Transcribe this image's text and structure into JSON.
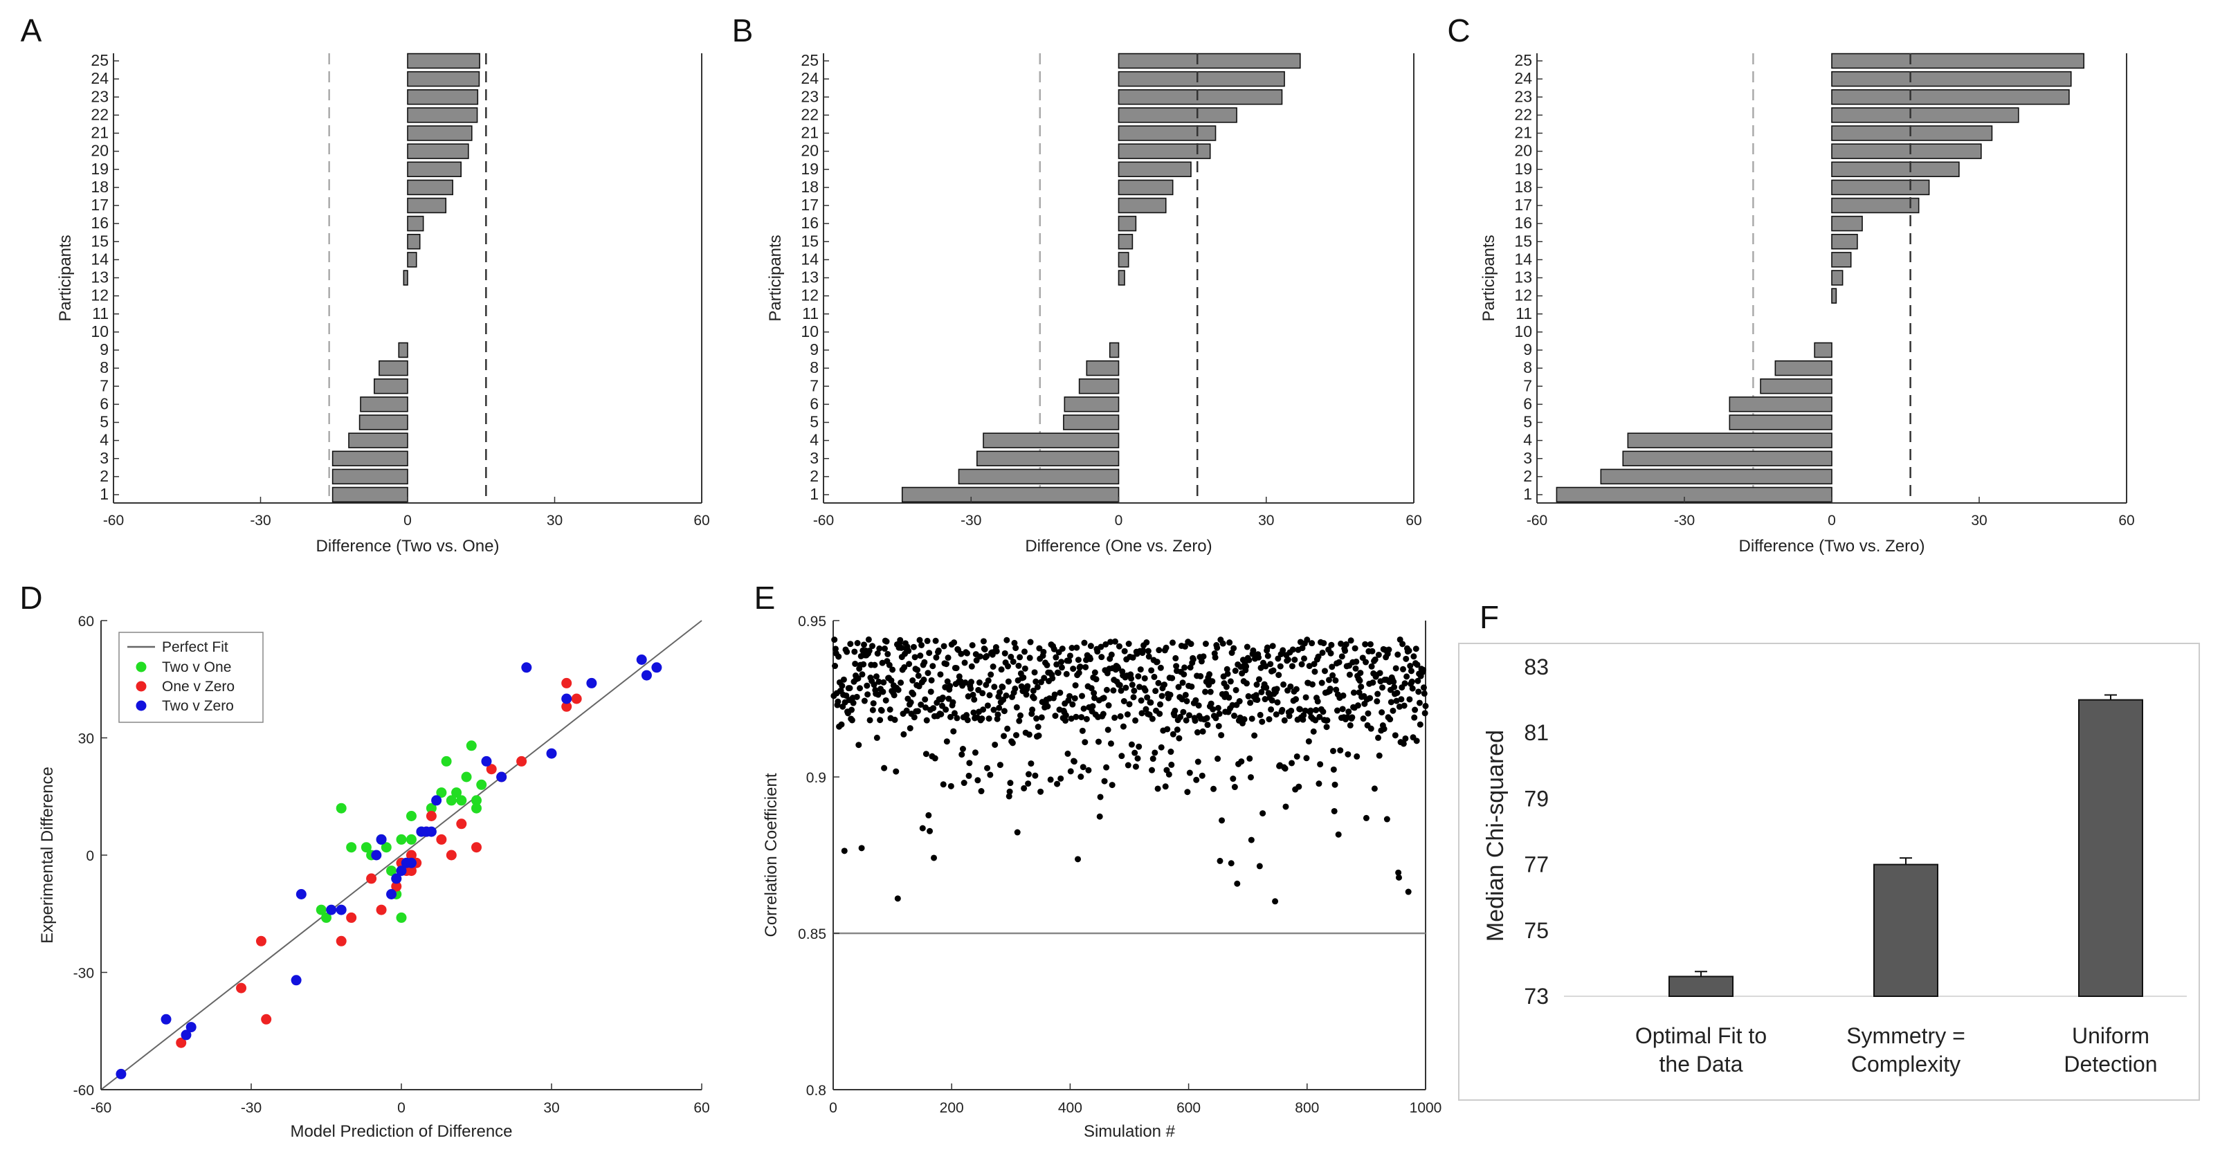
{
  "chart_data": [
    {
      "panel": "A",
      "type": "bar",
      "orientation": "horizontal",
      "xlabel": "Difference (Two vs. One)",
      "ylabel": "Participants",
      "xlim": [
        -60,
        60
      ],
      "xticks": [
        -60,
        -30,
        0,
        30,
        60
      ],
      "categories": [
        1,
        2,
        3,
        4,
        5,
        6,
        7,
        8,
        9,
        10,
        11,
        12,
        13,
        14,
        15,
        16,
        17,
        18,
        19,
        20,
        21,
        22,
        23,
        24,
        25
      ],
      "values": [
        -15.3,
        -15.3,
        -15.3,
        -12,
        -9.8,
        -9.6,
        -6.8,
        -5.8,
        -1.8,
        0,
        0,
        0,
        -0.8,
        1.8,
        2.5,
        3.2,
        7.8,
        9.2,
        10.9,
        12.4,
        13.1,
        14.2,
        14.3,
        14.6,
        14.7
      ],
      "ref_lines": [
        -16,
        16
      ]
    },
    {
      "panel": "B",
      "type": "bar",
      "orientation": "horizontal",
      "xlabel": "Difference (One vs. Zero)",
      "ylabel": "Participants",
      "xlim": [
        -60,
        60
      ],
      "xticks": [
        -60,
        -30,
        0,
        30,
        60
      ],
      "categories": [
        1,
        2,
        3,
        4,
        5,
        6,
        7,
        8,
        9,
        10,
        11,
        12,
        13,
        14,
        15,
        16,
        17,
        18,
        19,
        20,
        21,
        22,
        23,
        24,
        25
      ],
      "values": [
        -44,
        -32.5,
        -28.8,
        -27.5,
        -11.2,
        -11,
        -8,
        -6.5,
        -1.8,
        0,
        0,
        0,
        1.2,
        2,
        2.8,
        3.5,
        9.6,
        11,
        14.7,
        18.6,
        19.7,
        24,
        33.2,
        33.7,
        36.9
      ],
      "ref_lines": [
        -16,
        16
      ]
    },
    {
      "panel": "C",
      "type": "bar",
      "orientation": "horizontal",
      "xlabel": "Difference (Two vs. Zero)",
      "ylabel": "Participants",
      "xlim": [
        -60,
        60
      ],
      "xticks": [
        -60,
        -30,
        0,
        30,
        60
      ],
      "categories": [
        1,
        2,
        3,
        4,
        5,
        6,
        7,
        8,
        9,
        10,
        11,
        12,
        13,
        14,
        15,
        16,
        17,
        18,
        19,
        20,
        21,
        22,
        23,
        24,
        25
      ],
      "values": [
        -56,
        -47,
        -42.5,
        -41.5,
        -20.8,
        -20.8,
        -14.5,
        -11.5,
        -3.5,
        0,
        0,
        0.9,
        2.2,
        3.9,
        5.2,
        6.2,
        17.7,
        19.8,
        25.9,
        30.4,
        32.6,
        38,
        48.3,
        48.7,
        51.3
      ],
      "ref_lines": [
        -16,
        16
      ]
    },
    {
      "panel": "D",
      "type": "scatter",
      "xlabel": "Model Prediction of Difference",
      "ylabel": "Experimental Difference",
      "xlim": [
        -60,
        60
      ],
      "ylim": [
        -60,
        60
      ],
      "xticks": [
        -60,
        -30,
        0,
        30,
        60
      ],
      "yticks": [
        -60,
        -30,
        0,
        30,
        60
      ],
      "reference_line": {
        "name": "Perfect Fit",
        "from": [
          -60,
          -60
        ],
        "to": [
          60,
          60
        ]
      },
      "legend_position": "top-left",
      "series": [
        {
          "name": "Two v One",
          "color": "#22dd22",
          "points": [
            [
              -12,
              12
            ],
            [
              -10,
              2
            ],
            [
              -7,
              2
            ],
            [
              -6,
              0
            ],
            [
              -3,
              2
            ],
            [
              -1,
              -6
            ],
            [
              0,
              4
            ],
            [
              2,
              10
            ],
            [
              4,
              6
            ],
            [
              -1,
              -10
            ],
            [
              6,
              12
            ],
            [
              8,
              16
            ],
            [
              9,
              24
            ],
            [
              10,
              14
            ],
            [
              12,
              14
            ],
            [
              13,
              20
            ],
            [
              14,
              28
            ],
            [
              15,
              14
            ],
            [
              15,
              12
            ],
            [
              16,
              18
            ],
            [
              -15,
              -16
            ],
            [
              -16,
              -14
            ],
            [
              0,
              -16
            ],
            [
              -4,
              4
            ],
            [
              2,
              4
            ],
            [
              -2,
              -4
            ],
            [
              11,
              16
            ]
          ]
        },
        {
          "name": "One v Zero",
          "color": "#ee2222",
          "points": [
            [
              -27,
              -42
            ],
            [
              -28,
              -22
            ],
            [
              -32,
              -34
            ],
            [
              -12,
              -22
            ],
            [
              -6,
              -6
            ],
            [
              -10,
              -16
            ],
            [
              -1,
              -8
            ],
            [
              0,
              -2
            ],
            [
              1,
              -4
            ],
            [
              2,
              0
            ],
            [
              5,
              6
            ],
            [
              6,
              10
            ],
            [
              8,
              4
            ],
            [
              10,
              0
            ],
            [
              12,
              8
            ],
            [
              15,
              2
            ],
            [
              18,
              22
            ],
            [
              20,
              20
            ],
            [
              24,
              24
            ],
            [
              33,
              38
            ],
            [
              33,
              44
            ],
            [
              35,
              40
            ],
            [
              -44,
              -48
            ],
            [
              -4,
              -14
            ],
            [
              3,
              -2
            ],
            [
              2,
              -4
            ]
          ]
        },
        {
          "name": "Two v Zero",
          "color": "#1111dd",
          "points": [
            [
              -56,
              -56
            ],
            [
              -47,
              -42
            ],
            [
              -43,
              -46
            ],
            [
              -42,
              -44
            ],
            [
              -21,
              -32
            ],
            [
              -20,
              -10
            ],
            [
              -14,
              -14
            ],
            [
              -12,
              -14
            ],
            [
              -4,
              4
            ],
            [
              -2,
              -10
            ],
            [
              0,
              -4
            ],
            [
              1,
              -2
            ],
            [
              2,
              -2
            ],
            [
              4,
              6
            ],
            [
              5,
              6
            ],
            [
              6,
              6
            ],
            [
              7,
              14
            ],
            [
              17,
              24
            ],
            [
              20,
              20
            ],
            [
              25,
              48
            ],
            [
              30,
              26
            ],
            [
              33,
              40
            ],
            [
              38,
              44
            ],
            [
              48,
              50
            ],
            [
              49,
              46
            ],
            [
              51,
              48
            ],
            [
              -5,
              0
            ],
            [
              -1,
              -6
            ]
          ]
        }
      ]
    },
    {
      "panel": "E",
      "type": "scatter",
      "xlabel": "Simulation #",
      "ylabel": "Correlation Coefficient",
      "xlim": [
        0,
        1000
      ],
      "ylim": [
        0.8,
        0.95
      ],
      "xticks": [
        0,
        200,
        400,
        600,
        800,
        1000
      ],
      "yticks": [
        0.8,
        0.85,
        0.9,
        0.95
      ],
      "reference_line_y": 0.85,
      "n_points": 1000,
      "typical_range": [
        0.86,
        0.947
      ],
      "points_note": "1000 simulations, correlations mostly between 0.90 and 0.945"
    },
    {
      "panel": "F",
      "type": "bar",
      "ylabel": "Median Chi-squared",
      "ylim": [
        73,
        83.5
      ],
      "yticks": [
        73,
        75,
        77,
        79,
        81,
        83
      ],
      "categories": [
        [
          "Optimal Fit to",
          "the Data"
        ],
        [
          "Symmetry =",
          "Complexity"
        ],
        [
          "Uniform",
          "Detection"
        ]
      ],
      "values": [
        73.6,
        77.0,
        82.0
      ],
      "errors": [
        0.15,
        0.2,
        0.15
      ]
    }
  ]
}
